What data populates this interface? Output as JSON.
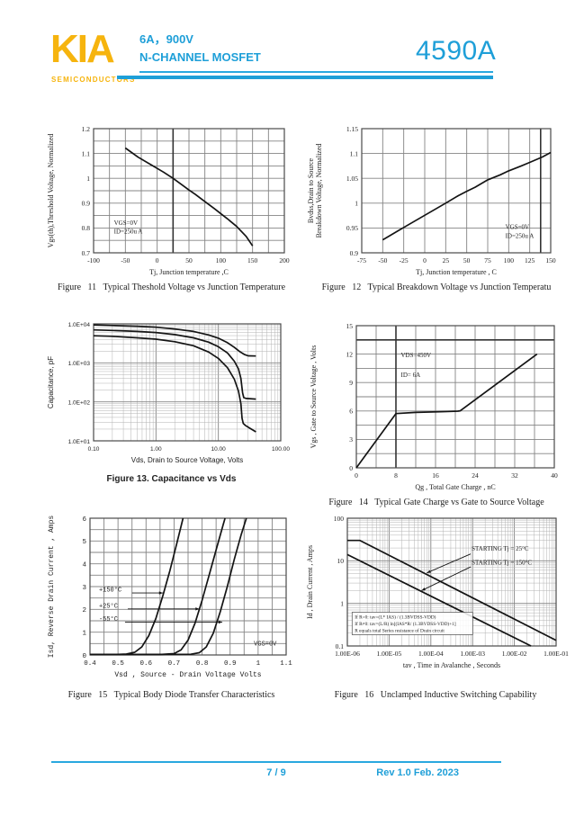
{
  "header": {
    "logo": "KIA",
    "logo_sub": "SEMICONDUCTORS",
    "rating": "6A，900V",
    "device_type": "N-CHANNEL MOSFET",
    "part_number": "4590A",
    "accent_color": "#1E9FD8",
    "logo_color": "#F6B40E"
  },
  "footer": {
    "page": "7 / 9",
    "revision": "Rev 1.0 Feb. 2023"
  },
  "chart_data": [
    {
      "id": "figure-11",
      "type": "line",
      "caption": "Figure   11   Typical Theshold Voltage vs Junction Temperature",
      "x": {
        "label": "Tj, Junction temperature ,C",
        "min": -100,
        "max": 200,
        "grid": 25,
        "ticks": [
          -100,
          -50,
          0,
          50,
          100,
          150,
          200
        ],
        "tick_labels": [
          "-100",
          "-50",
          "0",
          "50",
          "100",
          "150",
          "200"
        ]
      },
      "y": {
        "label": "Vgs(th),Threshold Voltage, Normalized",
        "min": 0.7,
        "max": 1.2,
        "grid": 0.05,
        "ticks": [
          0.7,
          0.8,
          0.9,
          1,
          1.1,
          1.2
        ],
        "tick_labels": [
          "0.7",
          "0.8",
          "0.9",
          "1",
          "1.1",
          "1.2"
        ]
      },
      "reflines": [
        {
          "axis": "x",
          "v": 25
        }
      ],
      "series": [
        {
          "name": "normalized-threshold-voltage",
          "points": [
            [
              -50,
              1.122
            ],
            [
              -30,
              1.085
            ],
            [
              -10,
              1.055
            ],
            [
              0,
              1.04
            ],
            [
              10,
              1.025
            ],
            [
              25,
              1.0
            ],
            [
              40,
              0.972
            ],
            [
              50,
              0.953
            ],
            [
              60,
              0.935
            ],
            [
              75,
              0.906
            ],
            [
              90,
              0.878
            ],
            [
              100,
              0.858
            ],
            [
              110,
              0.838
            ],
            [
              125,
              0.806
            ],
            [
              140,
              0.766
            ],
            [
              150,
              0.728
            ]
          ]
        }
      ],
      "annotations": [
        {
          "x": -68,
          "y": 0.812,
          "text": "VGS=0V"
        },
        {
          "x": -68,
          "y": 0.778,
          "text": "ID=250u A"
        }
      ]
    },
    {
      "id": "figure-12",
      "type": "line",
      "caption": "Figure   12   Typical Breakdown Voltage vs Junction Temperatu",
      "x": {
        "label": "Tj, Junction temperature , C",
        "min": -75,
        "max": 150,
        "grid": 25,
        "ticks": [
          -75,
          -50,
          -25,
          0,
          25,
          50,
          75,
          100,
          125,
          150
        ],
        "tick_labels": [
          "-75",
          "-50",
          "-25",
          "0",
          "25",
          "50",
          "75",
          "100",
          "125",
          "150"
        ]
      },
      "y": {
        "label": [
          "Bvdss,Drain to Source",
          "Breakdown Voltage, Normalized"
        ],
        "min": 0.9,
        "max": 1.15,
        "grid": 0.05,
        "ticks": [
          0.9,
          0.95,
          1,
          1.05,
          1.1,
          1.15
        ],
        "tick_labels": [
          "0.9",
          "0.95",
          "1",
          "1.05",
          "1.1",
          "1.15"
        ]
      },
      "reflines": [
        {
          "axis": "x",
          "v": 138
        }
      ],
      "series": [
        {
          "name": "normalized-breakdown-voltage",
          "points": [
            [
              -50,
              0.926
            ],
            [
              -25,
              0.951
            ],
            [
              0,
              0.9755
            ],
            [
              25,
              1.0
            ],
            [
              40,
              1.015
            ],
            [
              50,
              1.024
            ],
            [
              60,
              1.032
            ],
            [
              75,
              1.047
            ],
            [
              90,
              1.057
            ],
            [
              100,
              1.065
            ],
            [
              115,
              1.075
            ],
            [
              125,
              1.082
            ],
            [
              140,
              1.093
            ],
            [
              150,
              1.102
            ]
          ]
        }
      ],
      "annotations": [
        {
          "x": 96,
          "y": 0.948,
          "text": "VGS=0V"
        },
        {
          "x": 96,
          "y": 0.93,
          "text": "ID=250u A"
        }
      ]
    },
    {
      "id": "figure-13",
      "type": "line",
      "caption": "Figure 13. Capacitance vs Vds",
      "x": {
        "label": "Vds, Drain to Source Voltage, Volts",
        "min": 0.1,
        "max": 100,
        "scale": "log",
        "ticks": [
          0.1,
          1,
          10,
          100
        ],
        "tick_labels": [
          "0.10",
          "1.00",
          "10.00",
          "100.00"
        ]
      },
      "y": {
        "label": "Capacitance, pF",
        "min": 10,
        "max": 10000,
        "scale": "log",
        "ticks": [
          10,
          100,
          1000,
          10000
        ],
        "tick_labels": [
          "1.0E+01",
          "1.0E+02",
          "1.0E+03",
          "1.0E+04"
        ]
      },
      "series": [
        {
          "name": "capacitance-top-curve",
          "points": [
            [
              0.1,
              9400
            ],
            [
              0.2,
              9100
            ],
            [
              0.5,
              8700
            ],
            [
              1,
              8200
            ],
            [
              2,
              7400
            ],
            [
              4,
              6400
            ],
            [
              7,
              5200
            ],
            [
              10,
              4300
            ],
            [
              14,
              3300
            ],
            [
              18,
              2500
            ],
            [
              22,
              1950
            ],
            [
              26,
              1650
            ],
            [
              30,
              1520
            ],
            [
              40,
              1500
            ]
          ]
        },
        {
          "name": "capacitance-middle-curve",
          "points": [
            [
              0.1,
              7000
            ],
            [
              0.2,
              6800
            ],
            [
              0.5,
              6400
            ],
            [
              1,
              6000
            ],
            [
              2,
              5300
            ],
            [
              4,
              4400
            ],
            [
              7,
              3400
            ],
            [
              10,
              2600
            ],
            [
              14,
              1800
            ],
            [
              18,
              1100
            ],
            [
              21,
              700
            ],
            [
              23,
              400
            ],
            [
              24.5,
              170
            ],
            [
              25.5,
              128
            ],
            [
              28,
              122
            ],
            [
              40,
              118
            ]
          ]
        },
        {
          "name": "capacitance-bottom-curve",
          "points": [
            [
              0.1,
              4950
            ],
            [
              0.2,
              4800
            ],
            [
              0.5,
              4400
            ],
            [
              1,
              4050
            ],
            [
              2,
              3500
            ],
            [
              4,
              2750
            ],
            [
              7,
              1900
            ],
            [
              10,
              1300
            ],
            [
              14,
              750
            ],
            [
              18,
              380
            ],
            [
              21,
              190
            ],
            [
              23,
              90
            ],
            [
              24,
              38
            ],
            [
              25,
              28
            ],
            [
              27,
              25
            ],
            [
              32,
              21
            ],
            [
              40,
              17
            ]
          ]
        }
      ]
    },
    {
      "id": "figure-14",
      "type": "line",
      "caption": "Figure   14   Typical Gate Charge vs Gate to Source Voltage",
      "x": {
        "label": "Qg , Total Gate Charge , nC",
        "min": 0,
        "max": 40,
        "grid": 4,
        "ticks": [
          0,
          8,
          16,
          24,
          32,
          40
        ],
        "tick_labels": [
          "0",
          "8",
          "16",
          "24",
          "32",
          "40"
        ]
      },
      "y": {
        "label": "Vgs , Gate to Source Voltage , Volts",
        "min": 0,
        "max": 15,
        "grid": 1.5,
        "ticks": [
          0,
          3,
          6,
          9,
          12,
          15
        ],
        "tick_labels": [
          "0",
          "3",
          "6",
          "9",
          "12",
          "15"
        ]
      },
      "reflines": [
        {
          "axis": "x",
          "v": 8
        },
        {
          "axis": "y",
          "v": 13.5
        }
      ],
      "series": [
        {
          "name": "gate-charge-curve",
          "points": [
            [
              0,
              0
            ],
            [
              8,
              5.72
            ],
            [
              12,
              5.85
            ],
            [
              17,
              5.92
            ],
            [
              20.5,
              5.98
            ],
            [
              21,
              6.02
            ],
            [
              36.5,
              12.0
            ]
          ]
        }
      ],
      "annotations": [
        {
          "x": 9,
          "y": 11.7,
          "text": "VDS=450V"
        },
        {
          "x": 9,
          "y": 9.6,
          "text": "ID= 6A"
        }
      ]
    },
    {
      "id": "figure-15",
      "type": "line",
      "caption": "Figure   15   Typical Body Diode Transfer Characteristics",
      "x": {
        "label": "Vsd , Source - Drain Voltage   Volts",
        "min": 0.4,
        "max": 1.1,
        "grid": 0.05,
        "ticks": [
          0.4,
          0.5,
          0.6,
          0.7,
          0.8,
          0.9,
          1,
          1.1
        ],
        "tick_labels": [
          "0.4",
          "0.5",
          "0.6",
          "0.7",
          "0.8",
          "0.9",
          "1",
          "1.1"
        ]
      },
      "y": {
        "label": "Isd, Reverse Drain Current , Amps",
        "min": 0,
        "max": 6,
        "grid": 0.5,
        "ticks": [
          0,
          1,
          2,
          3,
          4,
          5,
          6
        ],
        "tick_labels": [
          "0",
          "1",
          "2",
          "3",
          "4",
          "5",
          "6"
        ]
      },
      "series": [
        {
          "name": "+150C",
          "points": [
            [
              0.4,
              0.02
            ],
            [
              0.5,
              0.025
            ],
            [
              0.53,
              0.04
            ],
            [
              0.56,
              0.12
            ],
            [
              0.585,
              0.35
            ],
            [
              0.61,
              0.85
            ],
            [
              0.635,
              1.6
            ],
            [
              0.66,
              2.6
            ],
            [
              0.685,
              3.7
            ],
            [
              0.71,
              4.9
            ],
            [
              0.73,
              5.9
            ],
            [
              0.732,
              6
            ]
          ]
        },
        {
          "name": "+25C",
          "points": [
            [
              0.4,
              0.02
            ],
            [
              0.65,
              0.02
            ],
            [
              0.7,
              0.06
            ],
            [
              0.725,
              0.22
            ],
            [
              0.75,
              0.65
            ],
            [
              0.775,
              1.4
            ],
            [
              0.8,
              2.4
            ],
            [
              0.825,
              3.5
            ],
            [
              0.85,
              4.6
            ],
            [
              0.875,
              5.7
            ],
            [
              0.882,
              6
            ]
          ]
        },
        {
          "name": "-55C",
          "points": [
            [
              0.4,
              0.02
            ],
            [
              0.76,
              0.03
            ],
            [
              0.79,
              0.1
            ],
            [
              0.815,
              0.35
            ],
            [
              0.84,
              0.95
            ],
            [
              0.865,
              1.9
            ],
            [
              0.89,
              3.0
            ],
            [
              0.915,
              4.2
            ],
            [
              0.94,
              5.3
            ],
            [
              0.958,
              6
            ]
          ]
        }
      ],
      "arrows": [
        {
          "from": [
            0.55,
            2.72
          ],
          "to": [
            0.66,
            2.72
          ]
        },
        {
          "from": [
            0.535,
            2.02
          ],
          "to": [
            0.79,
            2.02
          ]
        },
        {
          "from": [
            0.525,
            1.44
          ],
          "to": [
            0.872,
            1.44
          ]
        }
      ],
      "annotations": [
        {
          "x": 0.432,
          "y": 2.78,
          "text": "+150°C"
        },
        {
          "x": 0.432,
          "y": 2.08,
          "text": "+25°C"
        },
        {
          "x": 0.432,
          "y": 1.5,
          "text": "-55°C"
        },
        {
          "x": 0.985,
          "y": 0.42,
          "text": "VGS=0V"
        }
      ]
    },
    {
      "id": "figure-16",
      "type": "line",
      "caption": "Figure   16   Unclamped Inductive Switching Capability",
      "x": {
        "label": "tav , Time in Avalanche , Seconds",
        "min": 1e-06,
        "max": 0.1,
        "scale": "log",
        "ticks": [
          1e-06,
          1e-05,
          0.0001,
          0.001,
          0.01,
          0.1
        ],
        "tick_labels": [
          "1.00E-06",
          "1.00E-05",
          "1.00E-04",
          "1.00E-03",
          "1.00E-02",
          "1.00E-01"
        ]
      },
      "y": {
        "label": "Id , Drain Current , Amps",
        "min": 0.1,
        "max": 100,
        "scale": "log",
        "ticks": [
          0.1,
          1,
          10,
          100
        ],
        "tick_labels": [
          "0.1",
          "1",
          "10",
          "100"
        ]
      },
      "series": [
        {
          "name": "STARTING Tj = 25°C",
          "points": [
            [
              1e-06,
              30
            ],
            [
              2e-06,
              30
            ],
            [
              0.1,
              0.135
            ]
          ]
        },
        {
          "name": "STARTING Tj = 150°C",
          "points": [
            [
              1e-06,
              14
            ],
            [
              0.025,
              0.1
            ]
          ]
        }
      ],
      "arrows": [
        {
          "from": [
            0.0009,
            14.5
          ],
          "to": [
            8e-05,
            5.2
          ]
        },
        {
          "from": [
            0.0009,
            7.2
          ],
          "to": [
            6e-05,
            2.0
          ]
        }
      ],
      "annotations": [
        {
          "x": 0.00095,
          "y": 17.5,
          "text": "STARTING Tj = 25°C"
        },
        {
          "x": 0.00095,
          "y": 8.2,
          "text": "STARTING Tj = 150°C"
        }
      ],
      "notebox": {
        "x": 1.3e-06,
        "y": 0.62,
        "w": 134,
        "h": 25,
        "lines": [
          "If R=0: tav=(L* IAS) / (1.3BVDSS-VDD)",
          "If R≠0: tav=(L/R) ln[(IAS*R/ (1.3BVDSS-VDD)+1]",
          "R equals total Series resistance of Drain circuit"
        ]
      }
    }
  ]
}
